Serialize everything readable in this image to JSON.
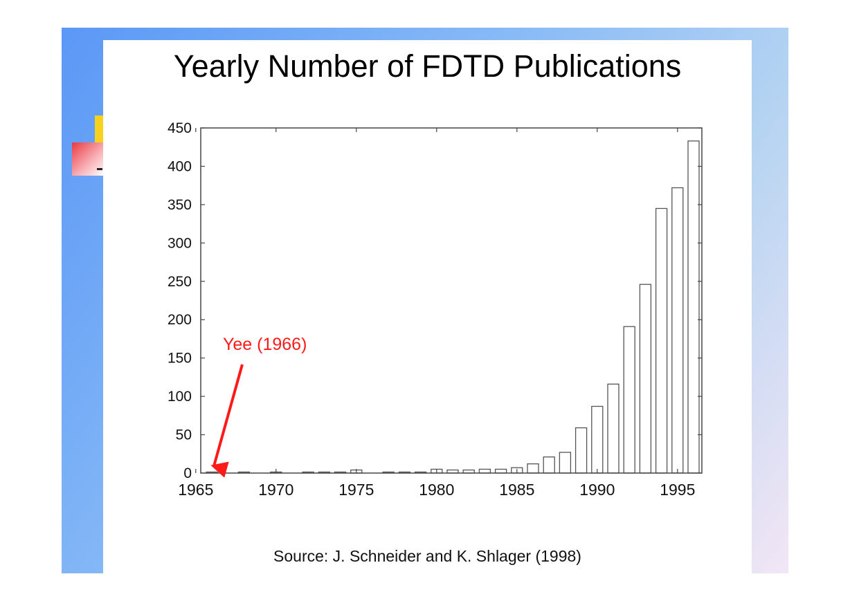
{
  "slide": {
    "source_note": "Source:  J. Schneider and K. Shlager (1998)"
  },
  "chart_data": {
    "type": "bar",
    "title": "Yearly Number of FDTD Publications",
    "xlabel": "",
    "ylabel": "",
    "xlim": [
      1965,
      1996
    ],
    "ylim": [
      0,
      450
    ],
    "xticks": [
      1965,
      1970,
      1975,
      1980,
      1985,
      1990,
      1995
    ],
    "yticks": [
      0,
      50,
      100,
      150,
      200,
      250,
      300,
      350,
      400,
      450
    ],
    "grid": false,
    "legend": "none",
    "bar_color": "#ffffff",
    "bar_edge_color": "#555555",
    "x": [
      1966,
      1967,
      1968,
      1969,
      1970,
      1971,
      1972,
      1973,
      1974,
      1975,
      1976,
      1977,
      1978,
      1979,
      1980,
      1981,
      1982,
      1983,
      1984,
      1985,
      1986,
      1987,
      1988,
      1989,
      1990,
      1991,
      1992,
      1993,
      1994,
      1995,
      1996
    ],
    "values": [
      1,
      0,
      1,
      0,
      1,
      0,
      1,
      1,
      1,
      4,
      0,
      1,
      1,
      1,
      5,
      4,
      4,
      5,
      5,
      7,
      12,
      21,
      27,
      59,
      87,
      116,
      191,
      246,
      345,
      372,
      433
    ],
    "annotation": {
      "text": "Yee (1966)",
      "color": "#ff1a1a",
      "x": 1966,
      "y": 0
    }
  }
}
